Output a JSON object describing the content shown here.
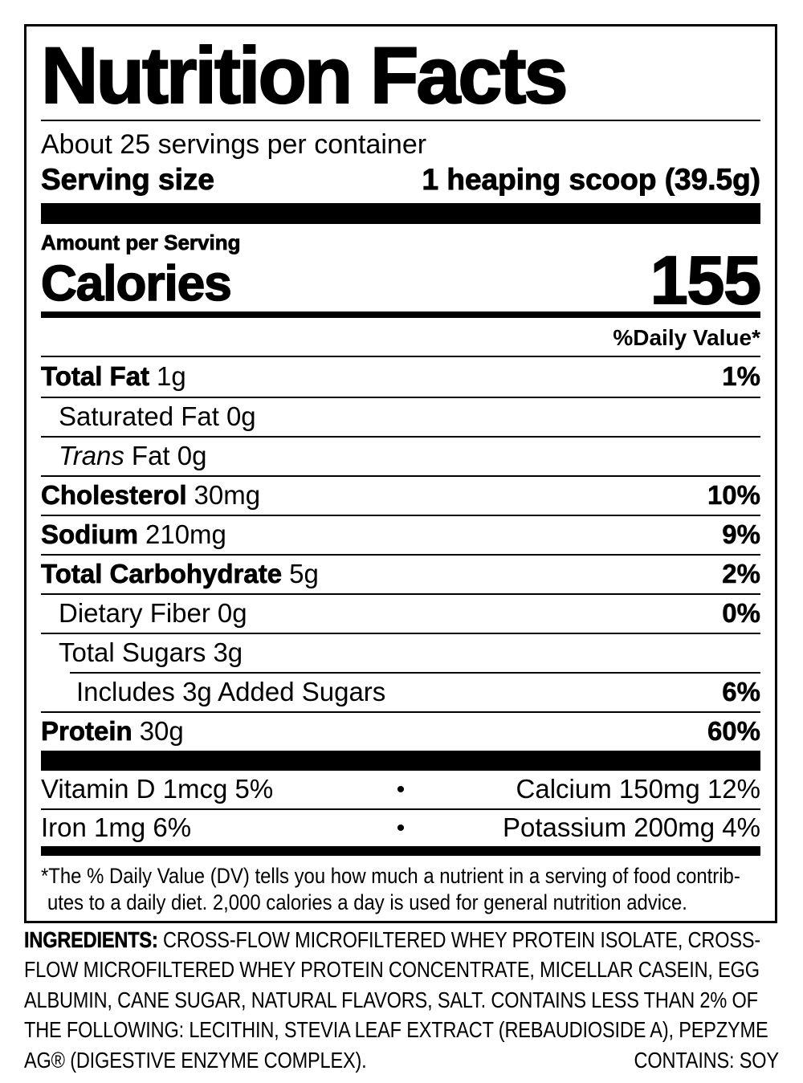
{
  "nutrition_label": {
    "title": "Nutrition Facts",
    "servings_per_container": "About 25 servings per container",
    "serving_size": {
      "label": "Serving size",
      "value": "1 heaping scoop (39.5g)"
    },
    "amount_per_serving": "Amount per Serving",
    "calories": {
      "label": "Calories",
      "value": "155"
    },
    "daily_value_header": "%Daily Value*",
    "rows": [
      {
        "name": "Total Fat",
        "amount": "1g",
        "dv": "1%"
      },
      {
        "name": "Saturated Fat",
        "amount": "0g",
        "dv": ""
      },
      {
        "name_italic": "Trans",
        "amount": "Fat 0g",
        "dv": ""
      },
      {
        "name": "Cholesterol",
        "amount": "30mg",
        "dv": "10%"
      },
      {
        "name": "Sodium",
        "amount": "210mg",
        "dv": "9%"
      },
      {
        "name": "Total Carbohydrate",
        "amount": "5g",
        "dv": "2%"
      },
      {
        "name": "Dietary Fiber",
        "amount": "0g",
        "dv": "0%"
      },
      {
        "name": "Total Sugars",
        "amount": "3g",
        "dv": ""
      },
      {
        "name": "Includes 3g Added Sugars",
        "amount": "",
        "dv": "6%"
      },
      {
        "name": "Protein",
        "amount": "30g",
        "dv": "60%"
      }
    ],
    "micronutrients": {
      "bullet": "•",
      "rows": [
        {
          "left": "Vitamin D 1mcg 5%",
          "right": "Calcium 150mg 12%"
        },
        {
          "left": "Iron 1mg 6%",
          "right": "Potassium 200mg 4%"
        }
      ]
    },
    "footnote_line1": "*The % Daily Value (DV) tells you how much a nutrient in a serving of food contrib-",
    "footnote_line2": "utes to a daily diet. 2,000 calories a day is used for general nutrition advice.",
    "ingredients": {
      "label": "INGREDIENTS:",
      "text": "CROSS-FLOW MICROFILTERED WHEY PROTEIN ISOLATE, CROSS-FLOW MICROFILTERED WHEY PROTEIN CONCENTRATE, MICELLAR CASEIN, EGG ALBUMIN, CANE SUGAR, NATURAL FLAVORS, SALT. CONTAINS LESS THAN 2% OF THE FOLLOWING: LECITHIN, STEVIA LEAF EXTRACT (REBAUDIOSIDE A), PEPZYME AG® (DIGESTIVE ENZYME COMPLEX).",
      "contains": "CONTAINS: SOY"
    },
    "colors": {
      "ink": "#000000",
      "background": "#ffffff"
    }
  }
}
